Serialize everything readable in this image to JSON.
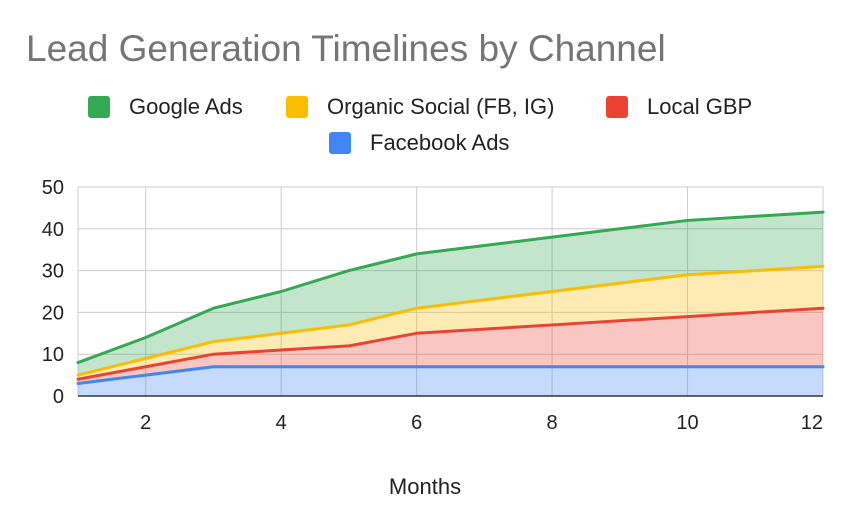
{
  "chart_data": {
    "type": "area",
    "stacked": true,
    "title": "Lead Generation Timelines by Channel",
    "xlabel": "Months",
    "ylabel": "",
    "x": [
      1,
      2,
      3,
      4,
      5,
      6,
      7,
      8,
      9,
      10,
      11,
      12
    ],
    "xlim": [
      1,
      12
    ],
    "xticks": [
      2,
      4,
      6,
      8,
      10,
      12
    ],
    "ylim": [
      0,
      50
    ],
    "yticks": [
      0,
      10,
      20,
      30,
      40,
      50
    ],
    "grid": true,
    "legend_position": "top",
    "legend_order": [
      "Google Ads",
      "Organic Social (FB, IG)",
      "Local GBP",
      "Facebook Ads"
    ],
    "series": [
      {
        "name": "Facebook Ads",
        "color": "#4285f4",
        "values": [
          3,
          5,
          7,
          7,
          7,
          7,
          7,
          7,
          7,
          7,
          7,
          7
        ]
      },
      {
        "name": "Local GBP",
        "color": "#ea4335",
        "values": [
          1,
          2,
          3,
          4,
          5,
          8,
          9,
          10,
          11,
          12,
          13,
          14
        ]
      },
      {
        "name": "Organic Social (FB, IG)",
        "color": "#fbbc04",
        "values": [
          1,
          2,
          3,
          4,
          5,
          6,
          7,
          8,
          9,
          10,
          10,
          10
        ]
      },
      {
        "name": "Google Ads",
        "color": "#34a853",
        "values": [
          3,
          5,
          8,
          10,
          13,
          13,
          13,
          13,
          13,
          13,
          13,
          13
        ]
      }
    ]
  }
}
